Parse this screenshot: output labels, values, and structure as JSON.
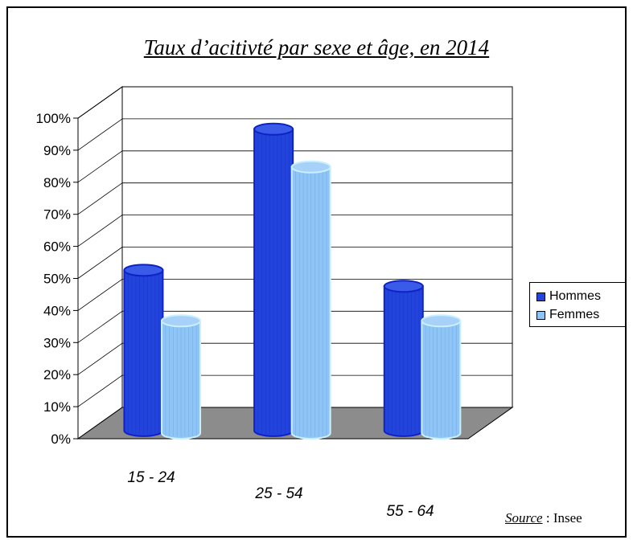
{
  "chart_data": {
    "type": "bar",
    "title": "Taux d’acitivté par sexe et âge, en 2014",
    "categories": [
      "15 - 24",
      "25 - 54",
      "55 - 64"
    ],
    "series": [
      {
        "name": "Hommes",
        "values": [
          50,
          94,
          45
        ],
        "color": "#2244dd"
      },
      {
        "name": "Femmes",
        "values": [
          35,
          83,
          35
        ],
        "color": "#8ec4f6"
      }
    ],
    "ylim": [
      0,
      100
    ],
    "yticks": [
      "0%",
      "10%",
      "20%",
      "30%",
      "40%",
      "50%",
      "60%",
      "70%",
      "80%",
      "90%",
      "100%"
    ],
    "grid": true,
    "legend": "right",
    "three_d": true
  },
  "source": {
    "label": "Source",
    "separator": " : ",
    "value": "Insee"
  }
}
